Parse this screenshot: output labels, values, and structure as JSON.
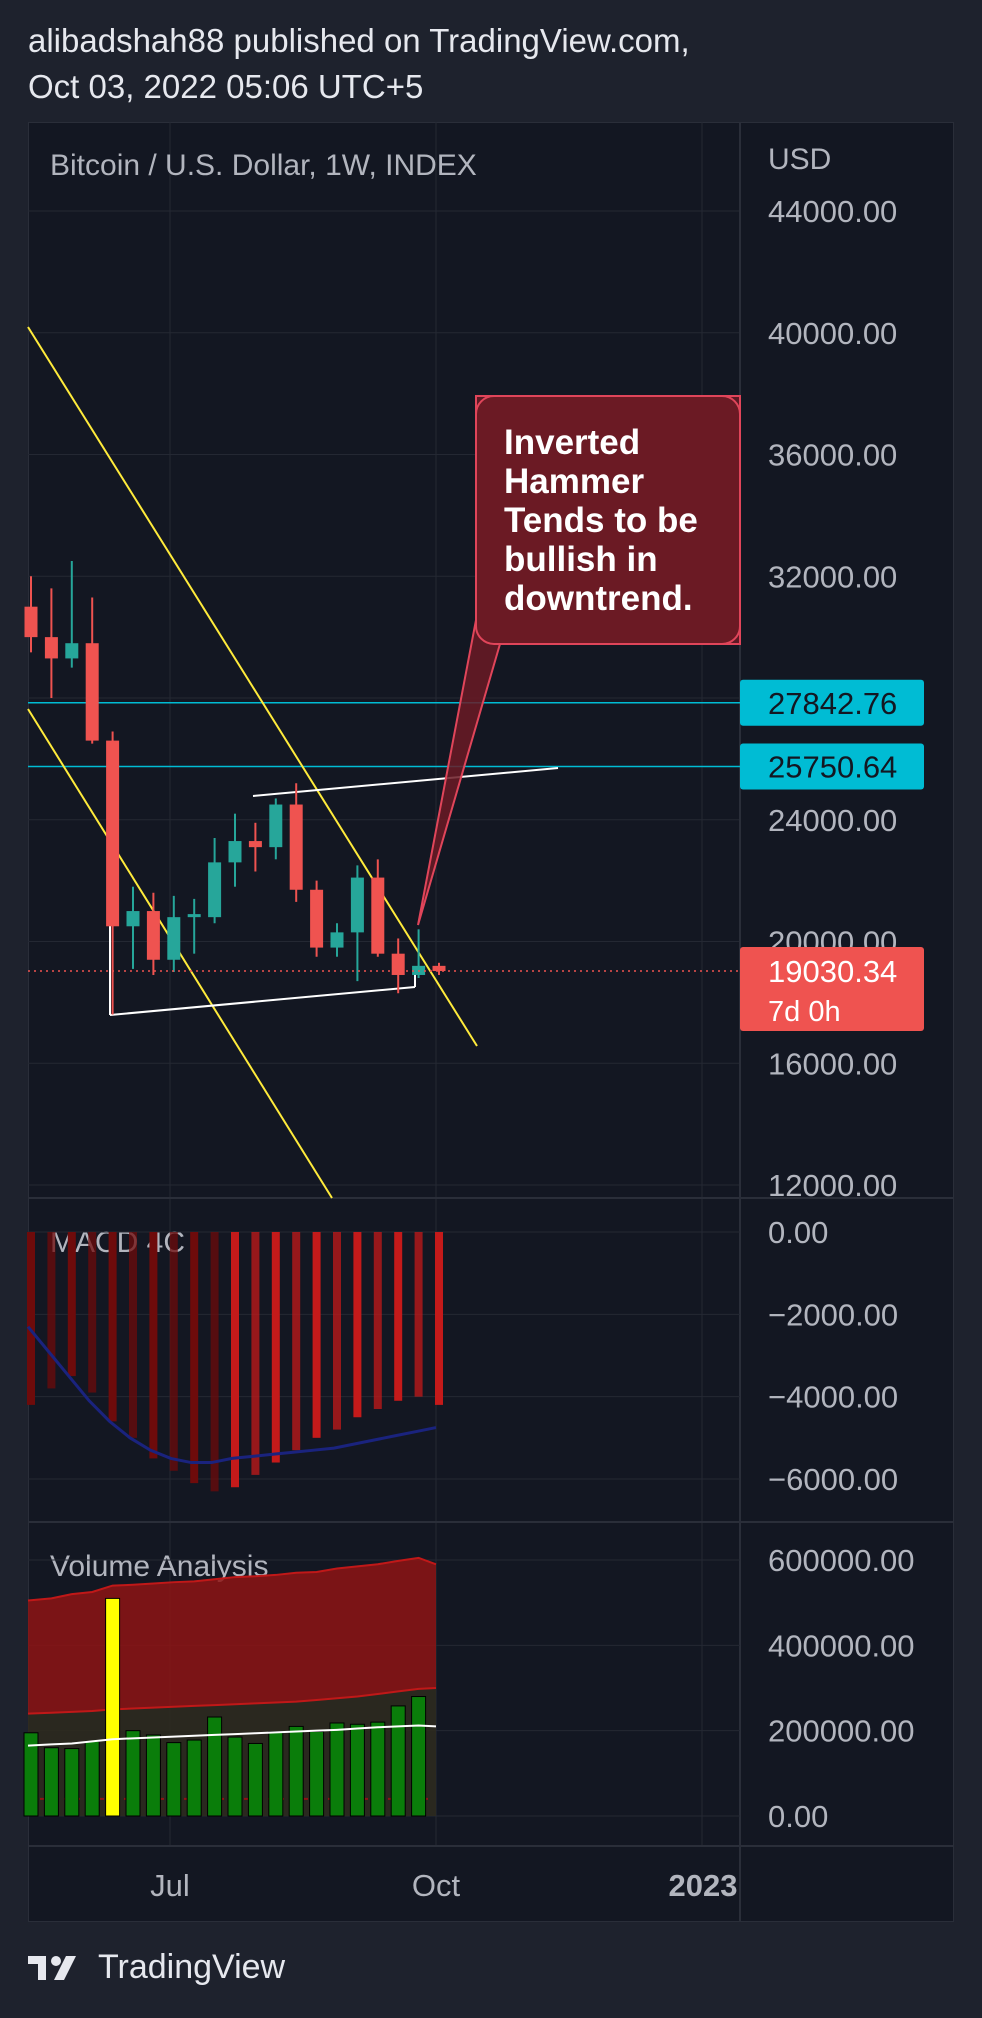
{
  "header": {
    "line1": "alibadshah88 published on TradingView.com,",
    "line2": "Oct 03, 2022 05:06 UTC+5"
  },
  "footer": {
    "brand": "TradingView",
    "logo_icon": "tradingview-logo-icon"
  },
  "colors": {
    "bull": "#26a69a",
    "bear": "#ef5350",
    "trend": "#ffeb3b",
    "channel": "#ffffff",
    "hline": "#00bcd4",
    "macd_dark": "#6e0b0b",
    "macd_bright": "#c41a1a",
    "macd_line": "#1a237e",
    "vol_bar": "#0a7d0a",
    "vol_spike": "#ffff00",
    "vol_area": "#8e1414",
    "callout": "#6b1a24"
  },
  "chart_data": [
    {
      "type": "candlestick",
      "title": "Bitcoin / U.S. Dollar, 1W, INDEX",
      "currency": "USD",
      "y_ticks": [
        "44000.00",
        "40000.00",
        "36000.00",
        "32000.00",
        "24000.00",
        "20000.00",
        "16000.00",
        "12000.00"
      ],
      "x_ticks": [
        "Jul",
        "Oct",
        "2023"
      ],
      "candles": [
        {
          "o": 31000,
          "h": 32000,
          "l": 29500,
          "c": 30000
        },
        {
          "o": 30000,
          "h": 31600,
          "l": 28000,
          "c": 29300
        },
        {
          "o": 29300,
          "h": 32500,
          "l": 29000,
          "c": 29800
        },
        {
          "o": 29800,
          "h": 31300,
          "l": 26500,
          "c": 26600
        },
        {
          "o": 26600,
          "h": 26900,
          "l": 17600,
          "c": 20500
        },
        {
          "o": 20500,
          "h": 21800,
          "l": 19100,
          "c": 21000
        },
        {
          "o": 21000,
          "h": 21600,
          "l": 18900,
          "c": 19400
        },
        {
          "o": 19400,
          "h": 21500,
          "l": 19000,
          "c": 20800
        },
        {
          "o": 20800,
          "h": 21400,
          "l": 19600,
          "c": 20900
        },
        {
          "o": 20800,
          "h": 23400,
          "l": 20600,
          "c": 22600
        },
        {
          "o": 22600,
          "h": 24200,
          "l": 21800,
          "c": 23300
        },
        {
          "o": 23300,
          "h": 23900,
          "l": 22300,
          "c": 23100
        },
        {
          "o": 23100,
          "h": 24700,
          "l": 22700,
          "c": 24500
        },
        {
          "o": 24500,
          "h": 25200,
          "l": 21300,
          "c": 21700
        },
        {
          "o": 21700,
          "h": 22000,
          "l": 19500,
          "c": 19800
        },
        {
          "o": 19800,
          "h": 20600,
          "l": 19500,
          "c": 20300
        },
        {
          "o": 20300,
          "h": 22500,
          "l": 18700,
          "c": 22100
        },
        {
          "o": 22100,
          "h": 22700,
          "l": 19500,
          "c": 19600
        },
        {
          "o": 19600,
          "h": 20100,
          "l": 18300,
          "c": 18900
        },
        {
          "o": 18900,
          "h": 20400,
          "l": 18800,
          "c": 19200
        },
        {
          "o": 19200,
          "h": 19300,
          "l": 18900,
          "c": 19030
        }
      ],
      "horizontal_lines": [
        {
          "value": 27842.76,
          "label": "27842.76"
        },
        {
          "value": 25750.64,
          "label": "25750.64"
        }
      ],
      "last_price": {
        "value": 19030.34,
        "label": "19030.34",
        "countdown": "7d 0h"
      },
      "annotation": "Inverted Hammer Tends to be bullish in downtrend."
    },
    {
      "type": "histogram",
      "title": "MACD 4C",
      "y_ticks": [
        "0.00",
        "−2000.00",
        "−4000.00",
        "−6000.00"
      ],
      "ylim": [
        -6500,
        0
      ],
      "bars": [
        -4200,
        -3800,
        -3500,
        -3900,
        -4600,
        -5000,
        -5500,
        -5800,
        -6100,
        -6300,
        -6200,
        -5900,
        -5600,
        -5300,
        -5000,
        -4800,
        -4500,
        -4300,
        -4100,
        -4000,
        -4200
      ],
      "bar_shade": [
        "dark",
        "dark",
        "dark",
        "dark",
        "dark",
        "dark",
        "dark",
        "dark",
        "dark",
        "dark",
        "bright",
        "bright",
        "bright",
        "bright",
        "bright",
        "bright",
        "bright",
        "bright",
        "bright",
        "bright",
        "bright"
      ],
      "signal": [
        -2300,
        -2900,
        -3500,
        -4100,
        -4600,
        -5000,
        -5300,
        -5500,
        -5600,
        -5600,
        -5500,
        -5450,
        -5400,
        -5350,
        -5300,
        -5250,
        -5150,
        -5050,
        -4950,
        -4850,
        -4750
      ]
    },
    {
      "type": "bar",
      "title": "Volume Analysis",
      "y_ticks": [
        "600000.00",
        "400000.00",
        "200000.00",
        "0.00"
      ],
      "ylim": [
        0,
        600000
      ],
      "values": [
        195000,
        160000,
        158000,
        175000,
        510000,
        200000,
        190000,
        172000,
        178000,
        232000,
        185000,
        170000,
        198000,
        210000,
        198000,
        218000,
        215000,
        220000,
        258000,
        280000,
        0
      ],
      "highlight_index": 4,
      "upper_band": [
        505000,
        510000,
        520000,
        525000,
        540000,
        542000,
        545000,
        548000,
        550000,
        555000,
        560000,
        562000,
        565000,
        570000,
        572000,
        580000,
        585000,
        590000,
        598000,
        605000,
        590000
      ],
      "mid_band": [
        240000,
        242000,
        244000,
        246000,
        250000,
        252000,
        254000,
        256000,
        258000,
        260000,
        262000,
        264000,
        266000,
        268000,
        272000,
        276000,
        280000,
        286000,
        292000,
        298000,
        300000
      ],
      "avg_line": [
        165000,
        168000,
        170000,
        175000,
        180000,
        182000,
        184000,
        186000,
        188000,
        190000,
        192000,
        194000,
        196000,
        198000,
        200000,
        202000,
        205000,
        208000,
        210000,
        212000,
        210000
      ]
    }
  ]
}
